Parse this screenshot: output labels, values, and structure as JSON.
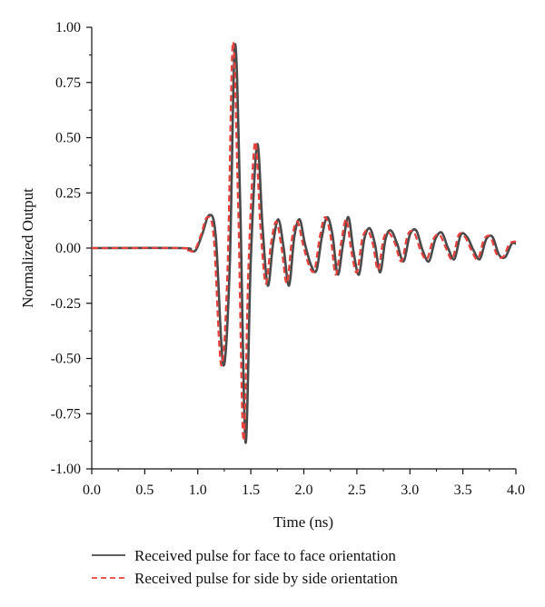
{
  "chart_data": {
    "type": "line",
    "title": "",
    "xlabel": "Time (ns)",
    "ylabel": "Normalized Output",
    "xlim": [
      0.0,
      4.0
    ],
    "ylim": [
      -1.0,
      1.0
    ],
    "xticks": [
      "0.0",
      "0.5",
      "1.0",
      "1.5",
      "2.0",
      "2.5",
      "3.0",
      "3.5",
      "4.0"
    ],
    "yticks": [
      "1.00",
      "0.75",
      "0.50",
      "0.25",
      "0.00",
      "-0.25",
      "-0.50",
      "-0.75",
      "-1.00"
    ],
    "grid": false,
    "legend_position": "bottom",
    "series": [
      {
        "name": "Received pulse for face to face orientation",
        "color": "#4a4a4a",
        "style": "solid",
        "x": [
          0.0,
          0.85,
          0.92,
          0.98,
          1.04,
          1.11,
          1.17,
          1.24,
          1.3,
          1.35,
          1.4,
          1.45,
          1.5,
          1.56,
          1.61,
          1.66,
          1.71,
          1.76,
          1.81,
          1.86,
          1.91,
          1.96,
          2.01,
          2.07,
          2.12,
          2.17,
          2.22,
          2.27,
          2.32,
          2.37,
          2.42,
          2.47,
          2.52,
          2.57,
          2.62,
          2.67,
          2.72,
          2.77,
          2.82,
          2.88,
          2.94,
          3.0,
          3.06,
          3.12,
          3.18,
          3.24,
          3.3,
          3.36,
          3.42,
          3.48,
          3.54,
          3.6,
          3.66,
          3.72,
          3.78,
          3.84,
          3.9,
          3.96,
          4.0
        ],
        "y": [
          0.0,
          0.0,
          -0.01,
          -0.01,
          0.06,
          0.15,
          0.05,
          -0.53,
          -0.1,
          0.92,
          0.2,
          -0.88,
          -0.05,
          0.47,
          0.1,
          -0.17,
          0.02,
          0.13,
          0.0,
          -0.17,
          0.05,
          0.13,
          0.02,
          -0.08,
          -0.1,
          0.05,
          0.14,
          0.06,
          -0.12,
          0.02,
          0.14,
          -0.02,
          -0.12,
          0.04,
          0.09,
          0.02,
          -0.11,
          0.04,
          0.08,
          0.02,
          -0.06,
          0.06,
          0.08,
          -0.01,
          -0.06,
          0.04,
          0.07,
          0.0,
          -0.05,
          0.06,
          0.05,
          -0.01,
          -0.05,
          0.04,
          0.05,
          -0.03,
          -0.04,
          0.02,
          0.02
        ]
      },
      {
        "name": "Received pulse for side by side orientation",
        "color": "#e8403a",
        "style": "dashed",
        "x": [
          0.0,
          0.84,
          0.91,
          0.97,
          1.03,
          1.09,
          1.15,
          1.22,
          1.28,
          1.33,
          1.38,
          1.43,
          1.48,
          1.54,
          1.59,
          1.64,
          1.69,
          1.74,
          1.79,
          1.84,
          1.89,
          1.94,
          1.99,
          2.05,
          2.1,
          2.15,
          2.2,
          2.25,
          2.3,
          2.35,
          2.4,
          2.45,
          2.5,
          2.55,
          2.6,
          2.65,
          2.7,
          2.75,
          2.8,
          2.86,
          2.92,
          2.98,
          3.04,
          3.1,
          3.16,
          3.22,
          3.28,
          3.34,
          3.4,
          3.46,
          3.52,
          3.58,
          3.64,
          3.7,
          3.76,
          3.82,
          3.88,
          3.94,
          4.0
        ],
        "y": [
          0.0,
          0.0,
          -0.01,
          -0.01,
          0.06,
          0.14,
          0.05,
          -0.53,
          -0.1,
          0.93,
          0.2,
          -0.87,
          -0.05,
          0.48,
          0.1,
          -0.16,
          0.02,
          0.12,
          0.0,
          -0.16,
          0.05,
          0.12,
          0.02,
          -0.08,
          -0.1,
          0.05,
          0.14,
          0.06,
          -0.12,
          0.02,
          0.13,
          -0.02,
          -0.11,
          0.04,
          0.08,
          0.02,
          -0.1,
          0.04,
          0.07,
          0.02,
          -0.06,
          0.06,
          0.07,
          -0.01,
          -0.05,
          0.04,
          0.06,
          0.0,
          -0.05,
          0.06,
          0.05,
          -0.01,
          -0.05,
          0.04,
          0.05,
          -0.03,
          -0.04,
          0.02,
          0.03
        ]
      }
    ]
  }
}
